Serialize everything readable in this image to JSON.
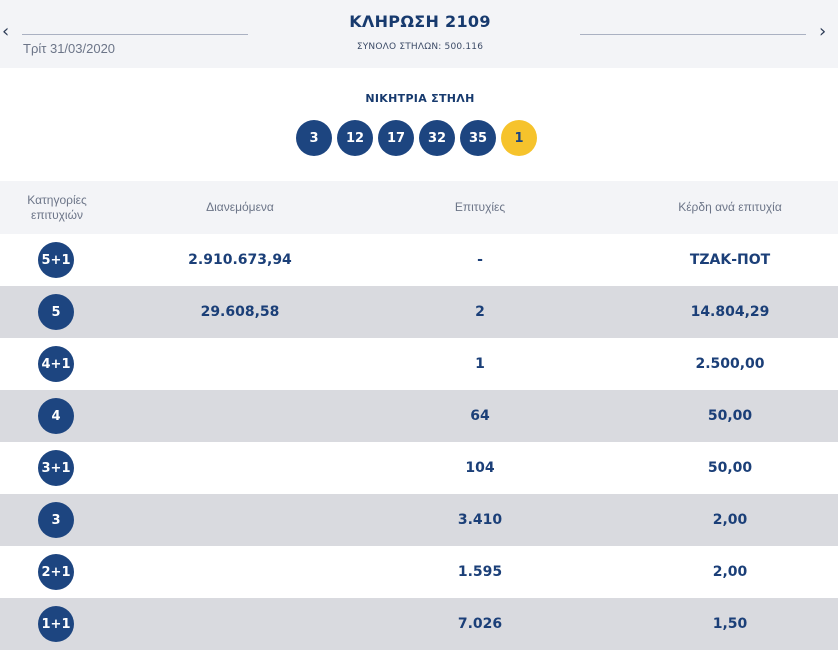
{
  "header": {
    "prev_icon": "chevron-left-icon",
    "next_icon": "chevron-right-icon",
    "prev_glyph": "‹",
    "next_glyph": "›",
    "date": "Τρίτ 31/03/2020",
    "draw_title": "ΚΛΗΡΩΣΗ 2109",
    "total_columns": "ΣΥΝΟΛΟ ΣΤΗΛΩΝ: 500.116"
  },
  "winning": {
    "label": "ΝΙΚΗΤΡΙΑ ΣΤΗΛΗ",
    "numbers": [
      "3",
      "12",
      "17",
      "32",
      "35"
    ],
    "joker": "1",
    "colors": {
      "number_ball": "#1d4580",
      "joker_ball": "#f6c32c"
    }
  },
  "table": {
    "headers": {
      "category": "Κατηγορίες επιτυχιών",
      "distributed": "Διανεμόμενα",
      "winners": "Επιτυχίες",
      "prize": "Κέρδη ανά επιτυχία"
    },
    "rows": [
      {
        "category": "5+1",
        "distributed": "2.910.673,94",
        "winners": "-",
        "prize": "ΤΖΑΚ-ΠΟΤ"
      },
      {
        "category": "5",
        "distributed": "29.608,58",
        "winners": "2",
        "prize": "14.804,29"
      },
      {
        "category": "4+1",
        "distributed": "",
        "winners": "1",
        "prize": "2.500,00"
      },
      {
        "category": "4",
        "distributed": "",
        "winners": "64",
        "prize": "50,00"
      },
      {
        "category": "3+1",
        "distributed": "",
        "winners": "104",
        "prize": "50,00"
      },
      {
        "category": "3",
        "distributed": "",
        "winners": "3.410",
        "prize": "2,00"
      },
      {
        "category": "2+1",
        "distributed": "",
        "winners": "1.595",
        "prize": "2,00"
      },
      {
        "category": "1+1",
        "distributed": "",
        "winners": "7.026",
        "prize": "1,50"
      }
    ]
  }
}
